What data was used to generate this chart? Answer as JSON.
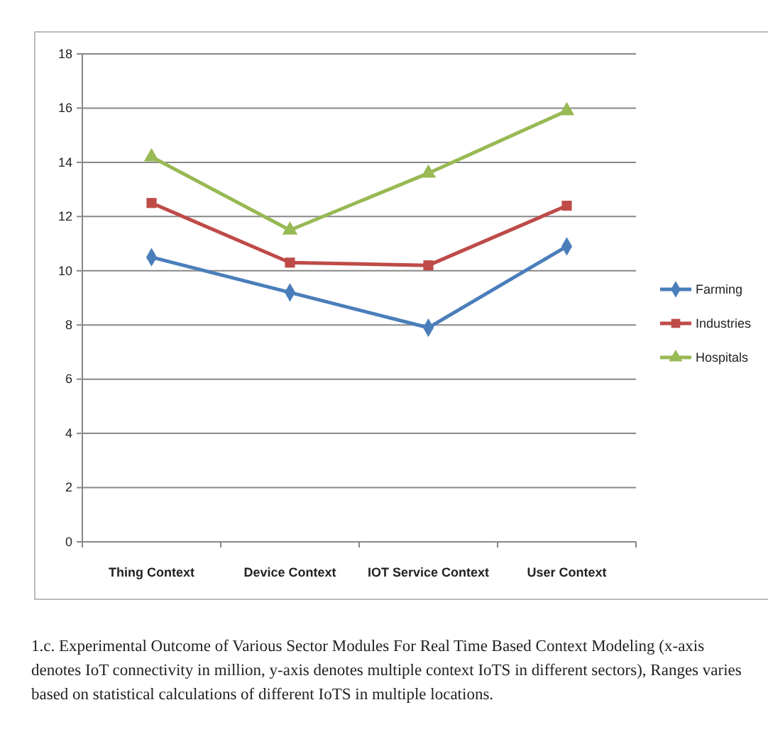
{
  "chart_data": {
    "type": "line",
    "categories": [
      "Thing Context",
      "Device Context",
      "IOT Service Context",
      "User Context"
    ],
    "series": [
      {
        "name": "Farming",
        "color": "#4a7ebb",
        "marker": "diamond",
        "values": [
          10.5,
          9.2,
          7.9,
          10.9
        ]
      },
      {
        "name": "Industries",
        "color": "#be4b48",
        "marker": "square",
        "values": [
          12.5,
          10.3,
          10.2,
          12.4
        ]
      },
      {
        "name": "Hospitals",
        "color": "#98b954",
        "marker": "triangle",
        "values": [
          14.2,
          11.5,
          13.6,
          15.9
        ]
      }
    ],
    "ylim": [
      0,
      18
    ],
    "yticks": [
      0,
      2,
      4,
      6,
      8,
      10,
      12,
      14,
      16,
      18
    ],
    "grid": "y",
    "legend": "right",
    "line_style": "solid",
    "annotations": [
      "1.c. Experimental Outcome of Various Sector Modules For Real Time Based Context Modeling (x-axis denotes IoT connectivity in million, y-axis denotes multiple context IoTS in different sectors), Ranges varies based on statistical calculations of different IoTS  in multiple locations."
    ]
  }
}
